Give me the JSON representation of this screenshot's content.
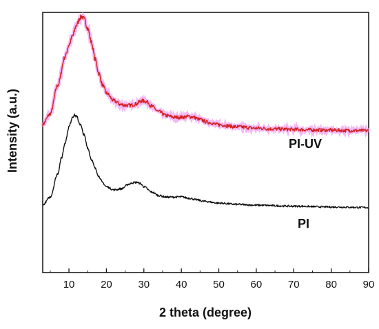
{
  "chart_data": {
    "type": "line",
    "xlabel": "2 theta (degree)",
    "ylabel": "Intensity (a.u.)",
    "xlim": [
      3,
      90
    ],
    "x_ticks": [
      10,
      20,
      30,
      40,
      50,
      60,
      70,
      80,
      90
    ],
    "y_ticks_shown": false,
    "y_scale": "arbitrary units (relative intensity)",
    "grid": false,
    "legend": "none (series labelled directly on plot)",
    "series": [
      {
        "name": "PI-UV",
        "color": "#d42020",
        "halo_color": "#f0a0f0",
        "points": [
          [
            3,
            0.57
          ],
          [
            5,
            0.61
          ],
          [
            7,
            0.72
          ],
          [
            9,
            0.83
          ],
          [
            10,
            0.875
          ],
          [
            11,
            0.91
          ],
          [
            12,
            0.95
          ],
          [
            13,
            0.98
          ],
          [
            13.5,
            0.985
          ],
          [
            14,
            0.975
          ],
          [
            15,
            0.94
          ],
          [
            16,
            0.885
          ],
          [
            17,
            0.82
          ],
          [
            18,
            0.765
          ],
          [
            19,
            0.72
          ],
          [
            20,
            0.69
          ],
          [
            22,
            0.66
          ],
          [
            24,
            0.645
          ],
          [
            26,
            0.642
          ],
          [
            28,
            0.648
          ],
          [
            29,
            0.658
          ],
          [
            30,
            0.66
          ],
          [
            31,
            0.655
          ],
          [
            32,
            0.64
          ],
          [
            34,
            0.618
          ],
          [
            36,
            0.603
          ],
          [
            38,
            0.597
          ],
          [
            40,
            0.597
          ],
          [
            42,
            0.6
          ],
          [
            43,
            0.598
          ],
          [
            45,
            0.588
          ],
          [
            47,
            0.578
          ],
          [
            50,
            0.568
          ],
          [
            55,
            0.56
          ],
          [
            60,
            0.555
          ],
          [
            65,
            0.552
          ],
          [
            70,
            0.55
          ],
          [
            75,
            0.548
          ],
          [
            80,
            0.547
          ],
          [
            85,
            0.546
          ],
          [
            90,
            0.545
          ]
        ]
      },
      {
        "name": "PI",
        "color": "#111111",
        "points": [
          [
            3,
            0.26
          ],
          [
            5,
            0.29
          ],
          [
            7,
            0.38
          ],
          [
            8,
            0.44
          ],
          [
            9,
            0.5
          ],
          [
            10,
            0.56
          ],
          [
            11,
            0.6
          ],
          [
            11.5,
            0.605
          ],
          [
            12,
            0.6
          ],
          [
            13,
            0.57
          ],
          [
            14,
            0.53
          ],
          [
            15,
            0.48
          ],
          [
            16,
            0.435
          ],
          [
            17,
            0.4
          ],
          [
            18,
            0.37
          ],
          [
            19,
            0.345
          ],
          [
            20,
            0.33
          ],
          [
            22,
            0.318
          ],
          [
            24,
            0.322
          ],
          [
            26,
            0.34
          ],
          [
            27,
            0.345
          ],
          [
            28,
            0.347
          ],
          [
            29,
            0.343
          ],
          [
            30,
            0.33
          ],
          [
            32,
            0.31
          ],
          [
            34,
            0.296
          ],
          [
            36,
            0.29
          ],
          [
            38,
            0.29
          ],
          [
            40,
            0.291
          ],
          [
            42,
            0.286
          ],
          [
            44,
            0.28
          ],
          [
            46,
            0.274
          ],
          [
            50,
            0.267
          ],
          [
            55,
            0.262
          ],
          [
            60,
            0.259
          ],
          [
            70,
            0.255
          ],
          [
            80,
            0.252
          ],
          [
            90,
            0.25
          ]
        ]
      }
    ]
  }
}
